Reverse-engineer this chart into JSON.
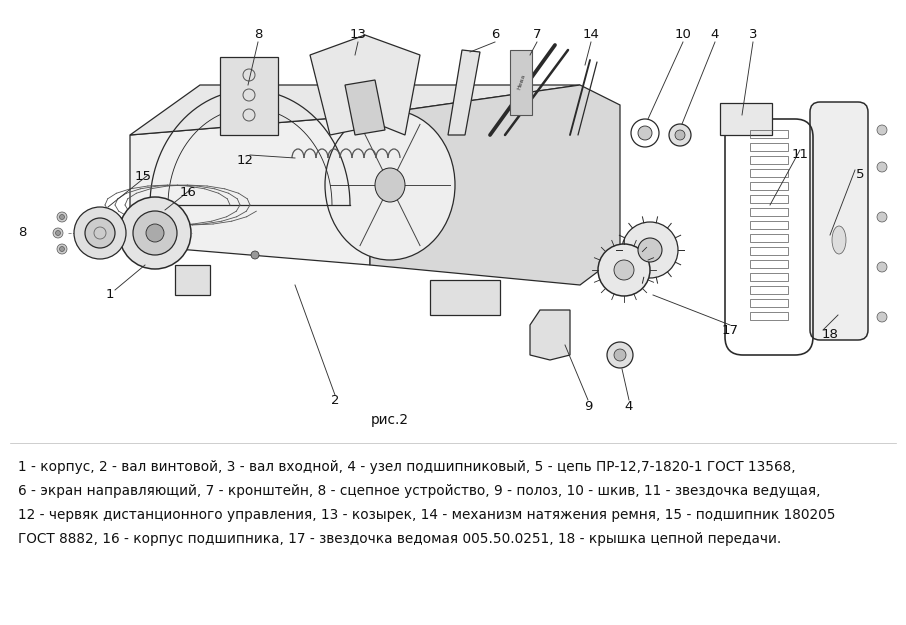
{
  "fig_label": "рис.2",
  "caption_lines": [
    "1 - корпус, 2 - вал винтовой, 3 - вал входной, 4 - узел подшипниковый, 5 - цепь ПР-12,7-1820-1 ГОСТ 13568,",
    "6 - экран направляющий, 7 - кронштейн, 8 - сцепное устройство, 9 - полоз, 10 - шкив, 11 - звездочка ведущая,",
    "12 - червяк дистанционного управления, 13 - козырек, 14 - механизм натяжения ремня, 15 - подшипник 180205",
    "ГОСТ 8882, 16 - корпус подшипника, 17 - звездочка ведомая 005.50.0251, 18 - крышка цепной передачи."
  ],
  "background_color": "#ffffff",
  "text_color": "#111111",
  "font_size_caption": 9.8,
  "font_size_labels": 9.5,
  "fig_width": 9.06,
  "fig_height": 6.25,
  "dpi": 100
}
